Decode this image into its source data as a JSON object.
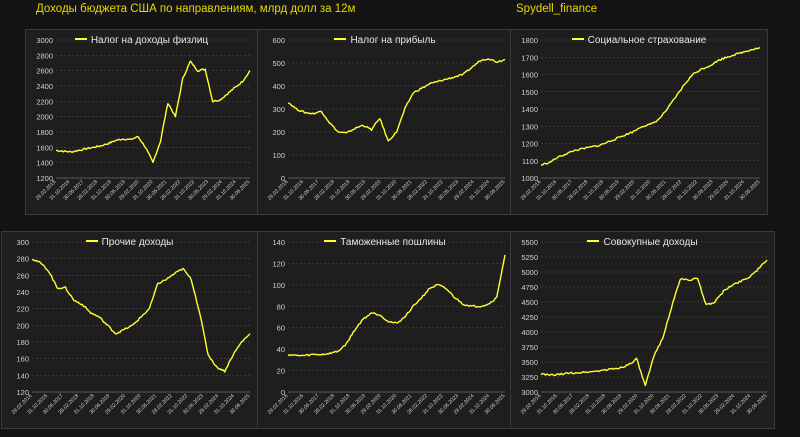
{
  "header": {
    "title": "Доходы бюджета США по направлениям, млрд долл за 12м",
    "brand": "Spydell_finance"
  },
  "colors": {
    "background": "#141414",
    "panel": "#1e1e1e",
    "line": "#ffff33",
    "title": "#e8d800",
    "grid": "#555555",
    "text": "#d0d0d0"
  },
  "chart_data": [
    {
      "type": "line",
      "legend": "Налог на доходы физлиц",
      "legend_position": "top-center",
      "grid": true,
      "ylim": [
        1200,
        3000
      ],
      "yticks": [
        1200,
        1400,
        1600,
        1800,
        2000,
        2200,
        2400,
        2600,
        2800,
        3000
      ],
      "xticks": [
        "29.02.2016",
        "31.10.2016",
        "30.06.2017",
        "28.02.2018",
        "31.10.2018",
        "30.06.2019",
        "29.02.2020",
        "31.10.2020",
        "30.06.2021",
        "28.02.2022",
        "31.10.2022",
        "30.06.2023",
        "29.02.2024",
        "31.10.2024",
        "30.06.2025"
      ],
      "series": [
        {
          "values": [
            1560,
            1550,
            1540,
            1560,
            1580,
            1600,
            1620,
            1650,
            1690,
            1710,
            1700,
            1740,
            1600,
            1400,
            1680,
            2180,
            2000,
            2500,
            2720,
            2600,
            2620,
            2200,
            2220,
            2300,
            2380,
            2460,
            2600
          ]
        }
      ]
    },
    {
      "type": "line",
      "legend": "Налог на прибыль",
      "legend_position": "top-center",
      "grid": true,
      "ylim": [
        0,
        600
      ],
      "yticks": [
        0,
        100,
        200,
        300,
        400,
        500,
        600
      ],
      "xticks": [
        "29.02.2016",
        "31.10.2016",
        "30.06.2017",
        "28.02.2018",
        "31.10.2018",
        "30.06.2019",
        "29.02.2020",
        "31.10.2020",
        "30.06.2021",
        "28.02.2022",
        "31.10.2022",
        "30.06.2023",
        "29.02.2024",
        "31.10.2024",
        "30.06.2025"
      ],
      "series": [
        {
          "values": [
            330,
            300,
            285,
            280,
            290,
            240,
            200,
            195,
            215,
            230,
            210,
            260,
            160,
            200,
            300,
            370,
            390,
            410,
            420,
            430,
            440,
            450,
            480,
            510,
            520,
            505,
            515
          ]
        }
      ]
    },
    {
      "type": "line",
      "legend": "Социальное страхование",
      "legend_position": "top-center",
      "grid": true,
      "ylim": [
        1000,
        1800
      ],
      "yticks": [
        1000,
        1100,
        1200,
        1300,
        1400,
        1500,
        1600,
        1700,
        1800
      ],
      "xticks": [
        "29.02.2016",
        "31.10.2016",
        "30.06.2017",
        "28.02.2018",
        "31.10.2018",
        "30.06.2019",
        "29.02.2020",
        "31.10.2020",
        "30.06.2021",
        "28.02.2022",
        "31.10.2022",
        "30.06.2023",
        "29.02.2024",
        "31.10.2024",
        "30.06.2025"
      ],
      "series": [
        {
          "values": [
            1075,
            1090,
            1120,
            1140,
            1160,
            1170,
            1180,
            1190,
            1210,
            1230,
            1250,
            1270,
            1300,
            1310,
            1340,
            1400,
            1470,
            1540,
            1600,
            1630,
            1650,
            1680,
            1700,
            1715,
            1730,
            1745,
            1755
          ]
        }
      ]
    },
    {
      "type": "line",
      "legend": "Прочие доходы",
      "legend_position": "top-center",
      "grid": true,
      "ylim": [
        120,
        300
      ],
      "yticks": [
        120,
        140,
        160,
        180,
        200,
        220,
        240,
        260,
        280,
        300
      ],
      "xticks": [
        "29.02.2016",
        "31.10.2016",
        "30.06.2017",
        "28.02.2018",
        "31.10.2018",
        "30.06.2019",
        "29.02.2020",
        "31.10.2020",
        "30.06.2021",
        "28.02.2022",
        "31.10.2022",
        "30.06.2023",
        "29.02.2024",
        "31.10.2024",
        "30.06.2025"
      ],
      "series": [
        {
          "values": [
            280,
            275,
            265,
            245,
            245,
            230,
            225,
            215,
            210,
            200,
            190,
            195,
            200,
            210,
            220,
            250,
            255,
            262,
            268,
            255,
            215,
            165,
            150,
            145,
            165,
            180,
            190
          ]
        }
      ]
    },
    {
      "type": "line",
      "legend": "Таможенные пошлины",
      "legend_position": "top-center",
      "grid": true,
      "ylim": [
        0,
        140
      ],
      "yticks": [
        0,
        20,
        40,
        60,
        80,
        100,
        120,
        140
      ],
      "xticks": [
        "29.02.2016",
        "31.10.2016",
        "30.06.2017",
        "28.02.2018",
        "31.10.2018",
        "30.06.2019",
        "29.02.2020",
        "31.10.2020",
        "30.06.2021",
        "28.02.2022",
        "31.10.2022",
        "30.06.2023",
        "29.02.2024",
        "31.10.2024",
        "30.06.2025"
      ],
      "series": [
        {
          "values": [
            35,
            34,
            34,
            35,
            35,
            36,
            38,
            45,
            58,
            68,
            74,
            72,
            66,
            64,
            70,
            80,
            88,
            97,
            100,
            96,
            88,
            82,
            80,
            80,
            82,
            88,
            128
          ]
        }
      ]
    },
    {
      "type": "line",
      "legend": "Совокупные доходы",
      "legend_position": "top-center",
      "grid": true,
      "ylim": [
        3000,
        5500
      ],
      "yticks": [
        3000,
        3250,
        3500,
        3750,
        4000,
        4250,
        4500,
        4750,
        5000,
        5250,
        5500
      ],
      "xticks": [
        "29.02.2016",
        "31.10.2016",
        "30.06.2017",
        "28.02.2018",
        "31.10.2018",
        "30.06.2019",
        "29.02.2020",
        "31.10.2020",
        "30.06.2021",
        "28.02.2022",
        "31.10.2022",
        "30.06.2023",
        "29.02.2024",
        "31.10.2024",
        "30.06.2025"
      ],
      "series": [
        {
          "values": [
            3300,
            3280,
            3290,
            3310,
            3320,
            3330,
            3340,
            3360,
            3380,
            3400,
            3450,
            3550,
            3100,
            3600,
            3900,
            4400,
            4880,
            4870,
            4890,
            4450,
            4500,
            4680,
            4780,
            4850,
            4920,
            5050,
            5200
          ]
        }
      ]
    }
  ]
}
